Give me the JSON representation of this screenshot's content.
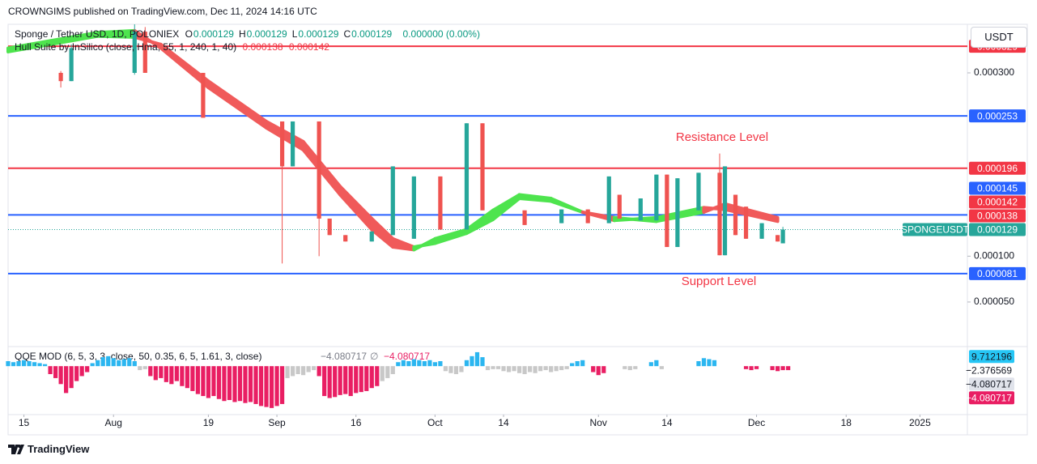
{
  "header": {
    "publisher": "CROWNGIMS published on TradingView.com, Dec 11, 2024 14:16 UTC"
  },
  "legend": {
    "symbol": "Sponge / Tether USD, 1D, POLONIEX",
    "ohlc": [
      {
        "key": "O",
        "value": "0.000129"
      },
      {
        "key": "H",
        "value": "0.000129"
      },
      {
        "key": "L",
        "value": "0.000129"
      },
      {
        "key": "C",
        "value": "0.000129"
      }
    ],
    "change": "0.000000 (0.00%)",
    "hull_title": "Hull Suite by InSilico (close, Hma, 55, 1, 240, 1, 40)",
    "hull_values": [
      "0.000138",
      "0.000142"
    ]
  },
  "currency_button": "USDT",
  "footer": {
    "brand": "TradingView"
  },
  "chart_data": [
    {
      "type": "candlestick",
      "xlim": [
        "2024-07-12",
        "2025-01-10"
      ],
      "ylim": [
        4e-06,
        0.000353
      ],
      "xticks": [
        {
          "value": "2024-07-15",
          "label": "15"
        },
        {
          "value": "2024-08-01",
          "label": "Aug"
        },
        {
          "value": "2024-08-19",
          "label": "19"
        },
        {
          "value": "2024-09-01",
          "label": "Sep"
        },
        {
          "value": "2024-09-16",
          "label": "16"
        },
        {
          "value": "2024-10-01",
          "label": "Oct"
        },
        {
          "value": "2024-10-14",
          "label": "14"
        },
        {
          "value": "2024-11-01",
          "label": "Nov"
        },
        {
          "value": "2024-11-14",
          "label": "14"
        },
        {
          "value": "2024-12-01",
          "label": "Dec"
        },
        {
          "value": "2024-12-18",
          "label": "18"
        },
        {
          "value": "2025-01-01",
          "label": "2025"
        }
      ],
      "yticks": [
        {
          "value": 5e-05,
          "label": "0.000050"
        },
        {
          "value": 0.0001,
          "label": "0.000100"
        },
        {
          "value": 0.0003,
          "label": "0.000300"
        }
      ],
      "grid": false,
      "up_color": "#26a69a",
      "down_color": "#ef5350",
      "candles": [
        {
          "x": "2024-07-22",
          "open": 0.0003,
          "high": 0.000302,
          "low": 0.000284,
          "close": 0.000291
        },
        {
          "x": "2024-07-24",
          "open": 0.000291,
          "high": 0.000331,
          "low": 0.000291,
          "close": 0.000327
        },
        {
          "x": "2024-08-05",
          "open": 0.0003,
          "high": 0.000353,
          "low": 0.000298,
          "close": 0.000345
        },
        {
          "x": "2024-08-07",
          "open": 0.000345,
          "high": 0.00035,
          "low": 0.0003,
          "close": 0.0003
        },
        {
          "x": "2024-08-18",
          "open": 0.0003,
          "high": 0.0003,
          "low": 0.000251,
          "close": 0.000251
        },
        {
          "x": "2024-09-02",
          "open": 0.000247,
          "high": 0.000247,
          "low": 9.2e-05,
          "close": 0.000198
        },
        {
          "x": "2024-09-04",
          "open": 0.000198,
          "high": 0.000247,
          "low": 0.000198,
          "close": 0.000247
        },
        {
          "x": "2024-09-09",
          "open": 0.000247,
          "high": 0.000247,
          "low": 0.0001,
          "close": 0.000141
        },
        {
          "x": "2024-09-11",
          "open": 0.000141,
          "high": 0.000141,
          "low": 0.000123,
          "close": 0.000123
        },
        {
          "x": "2024-09-14",
          "open": 0.000123,
          "high": 0.000123,
          "low": 0.000116,
          "close": 0.000116
        },
        {
          "x": "2024-09-19",
          "open": 0.000116,
          "high": 0.000127,
          "low": 0.000116,
          "close": 0.000127
        },
        {
          "x": "2024-09-23",
          "open": 0.000123,
          "high": 0.000198,
          "low": 0.000123,
          "close": 0.000198
        },
        {
          "x": "2024-09-27",
          "open": 0.000119,
          "high": 0.000187,
          "low": 0.000119,
          "close": 0.000187
        },
        {
          "x": "2024-10-02",
          "open": 0.000187,
          "high": 0.000187,
          "low": 0.000129,
          "close": 0.000129
        },
        {
          "x": "2024-10-07",
          "open": 0.000129,
          "high": 0.000245,
          "low": 0.000129,
          "close": 0.000245
        },
        {
          "x": "2024-10-10",
          "open": 0.000245,
          "high": 0.000245,
          "low": 0.00015,
          "close": 0.00015
        },
        {
          "x": "2024-10-18",
          "open": 0.00015,
          "high": 0.00015,
          "low": 0.000134,
          "close": 0.000134
        },
        {
          "x": "2024-10-25",
          "open": 0.000136,
          "high": 0.000151,
          "low": 0.000136,
          "close": 0.000151
        },
        {
          "x": "2024-10-30",
          "open": 0.000151,
          "high": 0.000151,
          "low": 0.000136,
          "close": 0.000136
        },
        {
          "x": "2024-11-03",
          "open": 0.000136,
          "high": 0.000187,
          "low": 0.000136,
          "close": 0.000187
        },
        {
          "x": "2024-11-05",
          "open": 0.000167,
          "high": 0.000167,
          "low": 0.000141,
          "close": 0.000141
        },
        {
          "x": "2024-11-09",
          "open": 0.000139,
          "high": 0.000163,
          "low": 0.000139,
          "close": 0.000163
        },
        {
          "x": "2024-11-12",
          "open": 0.000139,
          "high": 0.000189,
          "low": 0.000139,
          "close": 0.000189
        },
        {
          "x": "2024-11-14",
          "open": 0.000189,
          "high": 0.000189,
          "low": 0.00011,
          "close": 0.00011
        },
        {
          "x": "2024-11-16",
          "open": 0.00011,
          "high": 0.000185,
          "low": 0.00011,
          "close": 0.000185
        },
        {
          "x": "2024-11-20",
          "open": 0.00015,
          "high": 0.000191,
          "low": 0.00015,
          "close": 0.000191
        },
        {
          "x": "2024-11-24",
          "open": 0.000191,
          "high": 0.000212,
          "low": 0.000101,
          "close": 0.000101
        },
        {
          "x": "2024-11-25",
          "open": 0.000101,
          "high": 0.000198,
          "low": 0.000101,
          "close": 0.000198
        },
        {
          "x": "2024-11-27",
          "open": 0.000167,
          "high": 0.000167,
          "low": 0.000123,
          "close": 0.000123
        },
        {
          "x": "2024-11-29",
          "open": 0.000154,
          "high": 0.000154,
          "low": 0.000119,
          "close": 0.000119
        },
        {
          "x": "2024-12-02",
          "open": 0.000119,
          "high": 0.000136,
          "low": 0.000119,
          "close": 0.000136
        },
        {
          "x": "2024-12-05",
          "open": 0.000123,
          "high": 0.000123,
          "low": 0.000116,
          "close": 0.000116
        },
        {
          "x": "2024-12-06",
          "open": 0.000114,
          "high": 0.000132,
          "low": 0.000114,
          "close": 0.000129
        }
      ],
      "hull": {
        "up_color": "#4ee44e",
        "down_color": "#f05a5a",
        "x": [
          "2024-07-12",
          "2024-07-20",
          "2024-07-29",
          "2024-08-05",
          "2024-08-10",
          "2024-08-19",
          "2024-08-30",
          "2024-09-06",
          "2024-09-13",
          "2024-09-19",
          "2024-09-23",
          "2024-09-27",
          "2024-10-01",
          "2024-10-07",
          "2024-10-12",
          "2024-10-17",
          "2024-10-23",
          "2024-10-29",
          "2024-11-04",
          "2024-11-12",
          "2024-11-21",
          "2024-11-25",
          "2024-12-05"
        ],
        "fast": [
          0.000327,
          0.000335,
          0.000344,
          0.000346,
          0.000327,
          0.000284,
          0.00024,
          0.000216,
          0.000167,
          0.000129,
          0.00011,
          0.000107,
          0.000119,
          0.000129,
          0.00015,
          0.000167,
          0.000163,
          0.000148,
          0.000139,
          0.000142,
          0.000153,
          0.000151,
          0.000138
        ],
        "slow": [
          0.000323,
          0.000331,
          0.00034,
          0.000339,
          0.000331,
          0.000291,
          0.000247,
          0.000225,
          0.000176,
          0.000141,
          0.000119,
          0.00011,
          0.000114,
          0.000125,
          0.00014,
          0.000163,
          0.00016,
          0.000148,
          0.000142,
          0.000138,
          0.000148,
          0.000157,
          0.000142
        ]
      },
      "levels": [
        {
          "value": 0.000329,
          "color": "#f23645"
        },
        {
          "value": 0.000253,
          "color": "#2962ff"
        },
        {
          "value": 0.000196,
          "color": "#f23645"
        },
        {
          "value": 0.000145,
          "color": "#2962ff"
        },
        {
          "value": 8.1e-05,
          "color": "#2962ff"
        }
      ],
      "price_badges": [
        {
          "value": 0.000142,
          "color": "#f23645"
        },
        {
          "value": 0.000138,
          "color": "#f23645"
        },
        {
          "value": 0.000129,
          "color": "#26a69a",
          "tag": "SPONGEUSDT"
        }
      ],
      "annotations": [
        {
          "text": "Resistance Level",
          "color": "#f23645"
        },
        {
          "text": "Support Level",
          "color": "#f23645"
        }
      ]
    },
    {
      "type": "histogram",
      "title": "QQE MOD (6, 5, 3, 3, close, 50, 0.35, 6, 5, 1.61, 3, close)",
      "legend_values": [
        "−4.080717",
        "∅",
        "−4.080717"
      ],
      "ylim": [
        -47,
        18
      ],
      "runs": [
        {
          "from": "2024-07-12",
          "color": "#2bb6f0",
          "values": [
            5,
            4,
            5,
            6,
            5,
            4,
            3,
            2
          ]
        },
        {
          "from": "2024-07-20",
          "color": "#e91e63",
          "values": [
            -8,
            -12,
            -18,
            -27,
            -22,
            -15,
            -10,
            -6
          ]
        },
        {
          "from": "2024-07-28",
          "color": "#2bb6f0",
          "values": [
            3,
            6,
            9,
            10,
            8,
            6,
            7,
            8,
            5
          ]
        },
        {
          "from": "2024-08-06",
          "color": "#c8c8c8",
          "values": [
            -4,
            -3
          ]
        },
        {
          "from": "2024-08-08",
          "color": "#e91e63",
          "values": [
            -10,
            -14,
            -12,
            -16,
            -18,
            -15,
            -20,
            -22,
            -25,
            -28,
            -30,
            -32,
            -30,
            -33,
            -35,
            -34,
            -36,
            -35,
            -37,
            -36,
            -38,
            -40,
            -41,
            -42,
            -40,
            -38
          ]
        },
        {
          "from": "2024-09-03",
          "color": "#c8c8c8",
          "values": [
            -12,
            -10,
            -8,
            -9,
            -6,
            -4
          ]
        },
        {
          "from": "2024-09-09",
          "color": "#e91e63",
          "values": [
            -10,
            -30,
            -32,
            -31,
            -29,
            -28,
            -30,
            -27,
            -26,
            -25,
            -22,
            -20
          ]
        },
        {
          "from": "2024-09-21",
          "color": "#c8c8c8",
          "values": [
            -15,
            -12,
            -8
          ]
        },
        {
          "from": "2024-09-24",
          "color": "#2bb6f0",
          "values": [
            4,
            6,
            5,
            7,
            6,
            5,
            6,
            4,
            5
          ]
        },
        {
          "from": "2024-10-03",
          "color": "#c8c8c8",
          "values": [
            -5,
            -7,
            -8,
            -6
          ]
        },
        {
          "from": "2024-10-07",
          "color": "#2bb6f0",
          "values": [
            6,
            10,
            14,
            9
          ]
        },
        {
          "from": "2024-10-11",
          "color": "#c8c8c8",
          "values": [
            -4,
            -3,
            -3,
            -5,
            -6,
            -5,
            -7,
            -8,
            -6,
            -7,
            -5,
            -4,
            -6,
            -5,
            -4,
            -3
          ]
        },
        {
          "from": "2024-10-27",
          "color": "#2bb6f0",
          "values": [
            3,
            5,
            6
          ]
        },
        {
          "from": "2024-10-31",
          "color": "#e91e63",
          "values": [
            -6,
            -9,
            -7
          ]
        },
        {
          "from": "2024-11-06",
          "color": "#c8c8c8",
          "values": [
            -3,
            -4,
            -3
          ]
        },
        {
          "from": "2024-11-11",
          "color": "#2bb6f0",
          "values": [
            4,
            6
          ]
        },
        {
          "from": "2024-11-13",
          "color": "#c8c8c8",
          "values": [
            -3
          ]
        },
        {
          "from": "2024-11-20",
          "color": "#2bb6f0",
          "values": [
            5,
            8,
            7,
            6
          ]
        },
        {
          "from": "2024-11-29",
          "color": "#e91e63",
          "values": [
            -3,
            -4,
            -3
          ]
        },
        {
          "from": "2024-12-04",
          "color": "#e91e63",
          "values": [
            -4,
            -5,
            -4,
            -4
          ]
        }
      ],
      "axis_badges": [
        {
          "value": 9.712196,
          "color": "#26c6f5",
          "text_color": "#131722"
        },
        {
          "value": -2.376569,
          "label": "−2.376569",
          "text_color": "#131722"
        },
        {
          "value": -4.080717,
          "label": "−4.080717",
          "color": "#e0e3eb",
          "text_color": "#131722"
        },
        {
          "value": -4.080717,
          "label": "−4.080717",
          "color": "#e91e63",
          "text_color": "#ffffff"
        }
      ]
    }
  ]
}
